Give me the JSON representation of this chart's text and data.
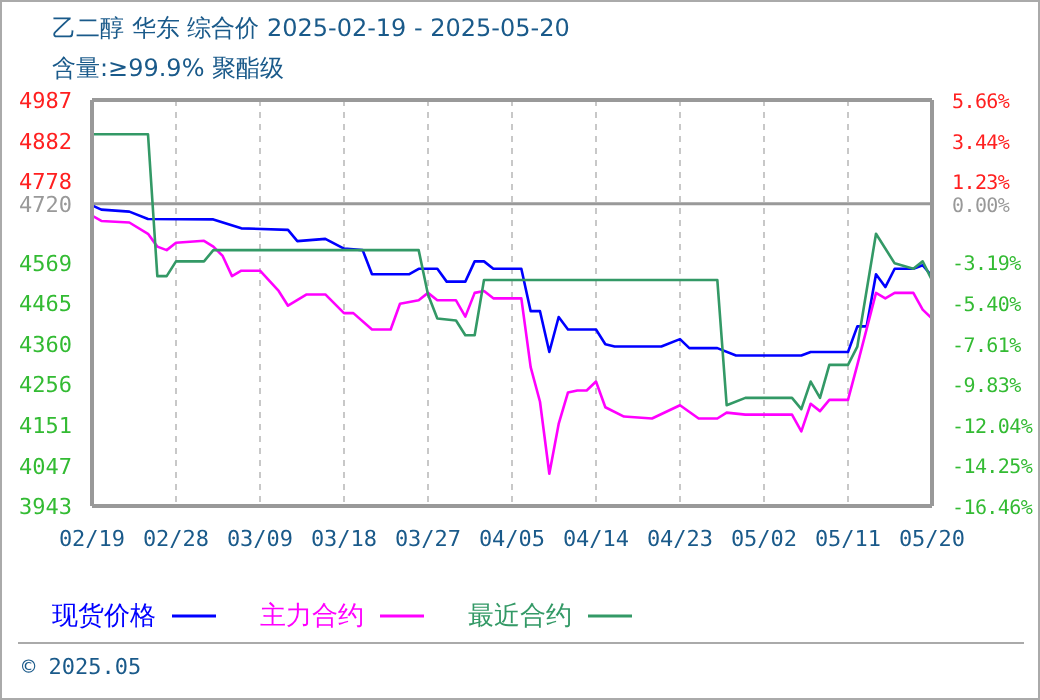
{
  "chart_data": {
    "type": "line",
    "title": "乙二醇 华东 综合价 2025-02-19 - 2025-05-20",
    "subtitle": "含量:≥99.9% 聚酯级",
    "annotations": [
      "© 2025.05"
    ],
    "xlim": [
      "2025-02-19",
      "2025-05-20"
    ],
    "xticks": [
      {
        "value": "2025-02-19",
        "label": "02/19"
      },
      {
        "value": "2025-02-28",
        "label": "02/28"
      },
      {
        "value": "2025-03-09",
        "label": "03/09"
      },
      {
        "value": "2025-03-18",
        "label": "03/18"
      },
      {
        "value": "2025-03-27",
        "label": "03/27"
      },
      {
        "value": "2025-04-05",
        "label": "04/05"
      },
      {
        "value": "2025-04-14",
        "label": "04/14"
      },
      {
        "value": "2025-04-23",
        "label": "04/23"
      },
      {
        "value": "2025-05-02",
        "label": "05/02"
      },
      {
        "value": "2025-05-11",
        "label": "05/11"
      },
      {
        "value": "2025-05-20",
        "label": "05/20"
      }
    ],
    "ylim": [
      3943,
      4987
    ],
    "yticks": [
      3943,
      4047,
      4151,
      4256,
      4360,
      4465,
      4569,
      4720,
      4778,
      4882,
      4987
    ],
    "y2lim": [
      -16.46,
      5.66
    ],
    "y2ticks": [
      {
        "value": -16.46,
        "label": "-16.46%"
      },
      {
        "value": -14.25,
        "label": "-14.25%"
      },
      {
        "value": -12.04,
        "label": "-12.04%"
      },
      {
        "value": -9.83,
        "label": "-9.83%"
      },
      {
        "value": -7.61,
        "label": "-7.61%"
      },
      {
        "value": -5.4,
        "label": "-5.40%"
      },
      {
        "value": -3.19,
        "label": "-3.19%"
      },
      {
        "value": 0,
        "label": "0.00%"
      },
      {
        "value": 1.23,
        "label": "1.23%"
      },
      {
        "value": 3.44,
        "label": "3.44%"
      },
      {
        "value": 5.66,
        "label": "5.66%"
      }
    ],
    "ref_lines": [
      {
        "axis": "y",
        "value": 4720,
        "color": "#999999"
      }
    ],
    "grid": true,
    "legend": "bottom",
    "marker": "none",
    "series": [
      {
        "name": "现货价格",
        "color": "#0000ff",
        "x": [
          "2025-02-19",
          "2025-02-20",
          "2025-02-23",
          "2025-02-25",
          "2025-03-04",
          "2025-03-07",
          "2025-03-12",
          "2025-03-13",
          "2025-03-16",
          "2025-03-18",
          "2025-03-20",
          "2025-03-21",
          "2025-03-25",
          "2025-03-26",
          "2025-03-28",
          "2025-03-29",
          "2025-03-31",
          "2025-04-01",
          "2025-04-02",
          "2025-04-03",
          "2025-04-06",
          "2025-04-07",
          "2025-04-08",
          "2025-04-09",
          "2025-04-10",
          "2025-04-11",
          "2025-04-14",
          "2025-04-15",
          "2025-04-16",
          "2025-04-21",
          "2025-04-23",
          "2025-04-24",
          "2025-04-27",
          "2025-04-29",
          "2025-05-06",
          "2025-05-07",
          "2025-05-11",
          "2025-05-12",
          "2025-05-13",
          "2025-05-14",
          "2025-05-15",
          "2025-05-16",
          "2025-05-18",
          "2025-05-19",
          "2025-05-20"
        ],
        "values": [
          4716,
          4705,
          4700,
          4681,
          4680,
          4657,
          4653,
          4624,
          4630,
          4605,
          4601,
          4539,
          4539,
          4553,
          4553,
          4520,
          4520,
          4572,
          4572,
          4553,
          4553,
          4444,
          4444,
          4339,
          4429,
          4397,
          4397,
          4359,
          4353,
          4353,
          4372,
          4349,
          4349,
          4330,
          4330,
          4339,
          4339,
          4405,
          4405,
          4539,
          4506,
          4553,
          4553,
          4562,
          4534
        ]
      },
      {
        "name": "主力合约",
        "color": "#ff00ff",
        "x": [
          "2025-02-19",
          "2025-02-20",
          "2025-02-23",
          "2025-02-25",
          "2025-02-26",
          "2025-02-27",
          "2025-02-28",
          "2025-03-03",
          "2025-03-04",
          "2025-03-05",
          "2025-03-06",
          "2025-03-07",
          "2025-03-09",
          "2025-03-11",
          "2025-03-12",
          "2025-03-14",
          "2025-03-16",
          "2025-03-18",
          "2025-03-19",
          "2025-03-21",
          "2025-03-23",
          "2025-03-24",
          "2025-03-26",
          "2025-03-27",
          "2025-03-28",
          "2025-03-30",
          "2025-03-31",
          "2025-04-01",
          "2025-04-02",
          "2025-04-03",
          "2025-04-06",
          "2025-04-07",
          "2025-04-08",
          "2025-04-09",
          "2025-04-10",
          "2025-04-11",
          "2025-04-12",
          "2025-04-13",
          "2025-04-14",
          "2025-04-15",
          "2025-04-17",
          "2025-04-20",
          "2025-04-23",
          "2025-04-25",
          "2025-04-27",
          "2025-04-28",
          "2025-04-30",
          "2025-05-05",
          "2025-05-06",
          "2025-05-07",
          "2025-05-08",
          "2025-05-09",
          "2025-05-11",
          "2025-05-12",
          "2025-05-14",
          "2025-05-15",
          "2025-05-16",
          "2025-05-18",
          "2025-05-19",
          "2025-05-20"
        ],
        "values": [
          4690,
          4676,
          4672,
          4643,
          4610,
          4601,
          4620,
          4625,
          4610,
          4586,
          4534,
          4548,
          4548,
          4496,
          4458,
          4487,
          4487,
          4439,
          4439,
          4397,
          4397,
          4463,
          4472,
          4491,
          4472,
          4472,
          4430,
          4491,
          4496,
          4477,
          4477,
          4300,
          4211,
          4026,
          4154,
          4235,
          4240,
          4240,
          4263,
          4197,
          4173,
          4168,
          4202,
          4168,
          4168,
          4183,
          4178,
          4178,
          4135,
          4206,
          4187,
          4216,
          4216,
          4306,
          4491,
          4477,
          4491,
          4491,
          4448,
          4425
        ]
      },
      {
        "name": "最近合约",
        "color": "#339966",
        "x": [
          "2025-02-19",
          "2025-02-25",
          "2025-02-26",
          "2025-02-27",
          "2025-02-28",
          "2025-03-03",
          "2025-03-04",
          "2025-03-26",
          "2025-03-27",
          "2025-03-28",
          "2025-03-30",
          "2025-03-31",
          "2025-04-01",
          "2025-04-02",
          "2025-04-27",
          "2025-04-28",
          "2025-04-30",
          "2025-05-05",
          "2025-05-06",
          "2025-05-07",
          "2025-05-08",
          "2025-05-09",
          "2025-05-11",
          "2025-05-12",
          "2025-05-14",
          "2025-05-16",
          "2025-05-18",
          "2025-05-19",
          "2025-05-20"
        ],
        "values": [
          4899,
          4899,
          4534,
          4534,
          4572,
          4572,
          4601,
          4601,
          4487,
          4425,
          4420,
          4382,
          4382,
          4524,
          4524,
          4202,
          4221,
          4221,
          4192,
          4263,
          4221,
          4306,
          4306,
          4353,
          4643,
          4567,
          4553,
          4572,
          4524
        ]
      }
    ]
  }
}
